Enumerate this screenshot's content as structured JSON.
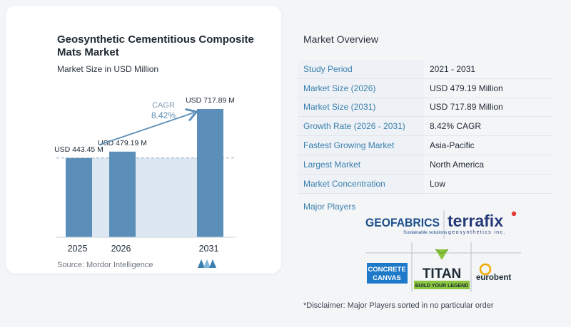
{
  "chart_data": {
    "type": "bar",
    "title": "Geosynthetic Cementitious Composite Mats Market",
    "subtitle": "Market Size in USD Million",
    "categories": [
      "2025",
      "2026",
      "2031"
    ],
    "values": [
      443.45,
      479.19,
      717.89
    ],
    "value_labels": [
      "USD 443.45 M",
      "USD 479.19 M",
      "USD 717.89 M"
    ],
    "cagr_label": "CAGR",
    "cagr_value": "8.42%",
    "bar_color": "#5b8fb9",
    "projection_color": "#dce7f1",
    "source": "Source: Mordor Intelligence"
  },
  "overview": {
    "title": "Market Overview",
    "rows": [
      {
        "label": "Study Period",
        "value": "2021 - 2031"
      },
      {
        "label": "Market Size (2026)",
        "value": "USD 479.19 Million"
      },
      {
        "label": "Market Size (2031)",
        "value": "USD 717.89 Million"
      },
      {
        "label": "Growth Rate (2026 - 2031)",
        "value": "8.42% CAGR"
      },
      {
        "label": "Fastest Growing Market",
        "value": "Asia-Pacific"
      },
      {
        "label": "Largest Market",
        "value": "North America"
      },
      {
        "label": "Market Concentration",
        "value": "Low"
      }
    ]
  },
  "players": {
    "title": "Major Players",
    "logos": {
      "geofabrics": "GEOFABRICS",
      "geofabrics_tag": "Sustainable solutions",
      "terrafix": "terrafix",
      "terrafix_tag": "geosynthetics inc.",
      "concrete_1": "CONCRETE",
      "concrete_2": "CANVAS",
      "titan": "TITAN",
      "titan_tag": "BUILD YOUR LEGEND",
      "eurobent": "eurobent"
    },
    "disclaimer": "*Disclaimer: Major Players sorted in no particular order"
  }
}
